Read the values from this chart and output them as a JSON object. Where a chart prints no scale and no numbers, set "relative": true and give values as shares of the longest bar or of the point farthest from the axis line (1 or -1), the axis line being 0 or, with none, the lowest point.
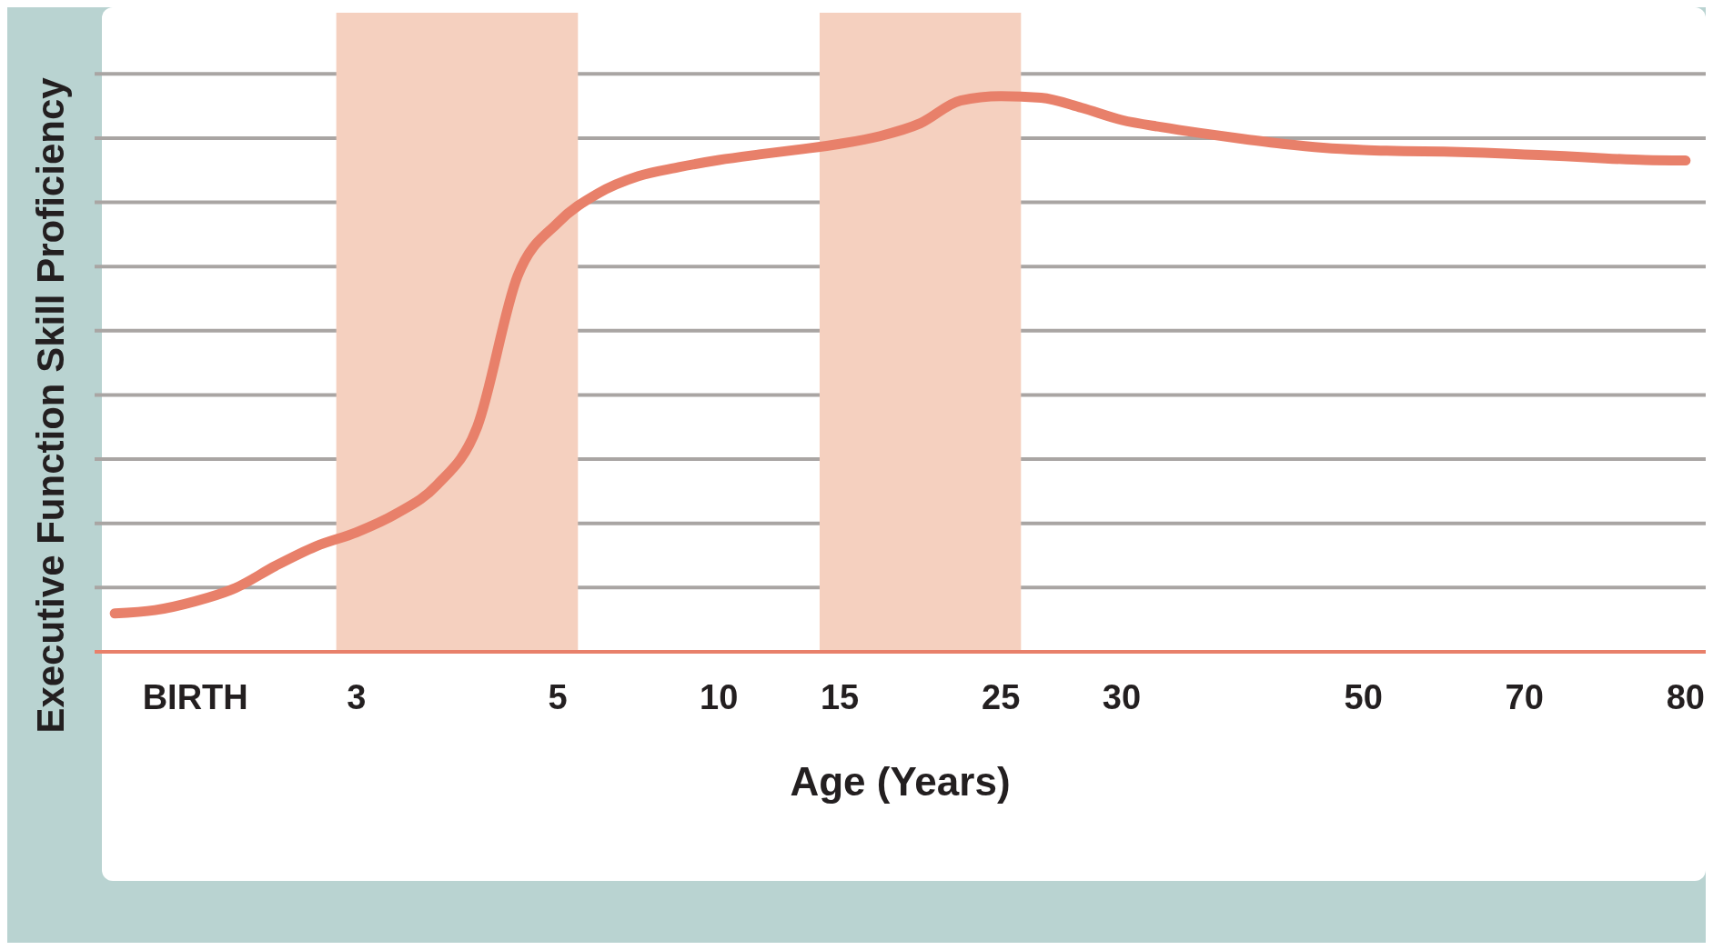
{
  "chart_data": {
    "type": "line",
    "relative": true,
    "xlabel": "Age (Years)",
    "ylabel": "Executive Function Skill Proficiency",
    "grid": "y",
    "marker": "none",
    "line_style": "solid",
    "categories": [
      null,
      null,
      "BIRTH",
      null,
      null,
      null,
      "3",
      null,
      null,
      null,
      null,
      "5",
      null,
      null,
      null,
      "10",
      null,
      null,
      "15",
      null,
      null,
      null,
      "25",
      null,
      null,
      "30",
      null,
      null,
      null,
      null,
      null,
      "50",
      null,
      null,
      null,
      "70",
      null,
      null,
      null,
      "80"
    ],
    "series": [
      {
        "color": "#e8806a",
        "values": [
          0.069,
          0.075,
          0.091,
          0.115,
          0.155,
          0.19,
          0.215,
          0.249,
          0.3,
          0.405,
          0.676,
          0.772,
          0.825,
          0.856,
          0.872,
          0.885,
          0.895,
          0.904,
          0.914,
          0.928,
          0.951,
          0.992,
          1.0,
          0.997,
          0.979,
          0.957,
          0.944,
          0.933,
          0.923,
          0.914,
          0.907,
          0.903,
          0.901,
          0.9,
          0.898,
          0.895,
          0.892,
          0.888,
          0.885,
          0.884
        ]
      }
    ],
    "bands": [
      {
        "axis": "x",
        "from": "3",
        "to": "5",
        "color": "#f5d0bf"
      },
      {
        "axis": "x",
        "from": "15",
        "to": "25",
        "color": "#f5d0bf"
      }
    ]
  }
}
